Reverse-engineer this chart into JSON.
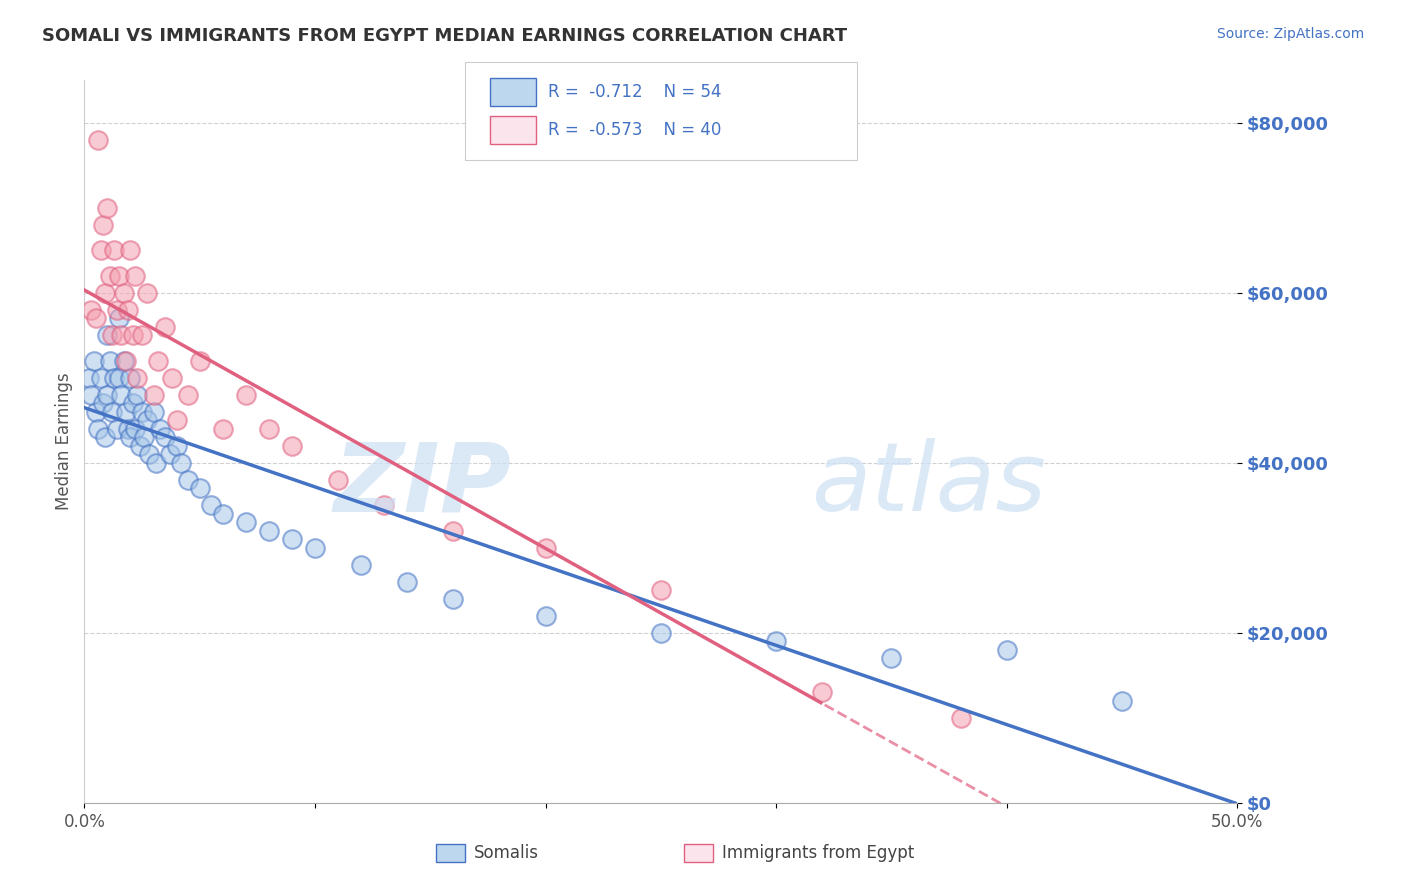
{
  "title": "SOMALI VS IMMIGRANTS FROM EGYPT MEDIAN EARNINGS CORRELATION CHART",
  "source": "Source: ZipAtlas.com",
  "ylabel": "Median Earnings",
  "legend_label1": "Somalis",
  "legend_label2": "Immigrants from Egypt",
  "color_blue": "#a8c8e8",
  "color_pink": "#f4a0b0",
  "color_blue_line": "#4472c4",
  "color_pink_line": "#e06080",
  "color_blue_fill": "#bdd7ee",
  "color_pink_fill": "#fce4ec",
  "ytick_labels": [
    "$0",
    "$20,000",
    "$40,000",
    "$60,000",
    "$80,000"
  ],
  "ytick_values": [
    0,
    20000,
    40000,
    60000,
    80000
  ],
  "xlim": [
    0.0,
    0.5
  ],
  "ylim": [
    0,
    85000
  ],
  "somali_x": [
    0.002,
    0.003,
    0.004,
    0.005,
    0.006,
    0.007,
    0.008,
    0.009,
    0.01,
    0.01,
    0.011,
    0.012,
    0.013,
    0.014,
    0.015,
    0.015,
    0.016,
    0.017,
    0.018,
    0.019,
    0.02,
    0.02,
    0.021,
    0.022,
    0.023,
    0.024,
    0.025,
    0.026,
    0.027,
    0.028,
    0.03,
    0.031,
    0.033,
    0.035,
    0.037,
    0.04,
    0.042,
    0.045,
    0.05,
    0.055,
    0.06,
    0.07,
    0.08,
    0.09,
    0.1,
    0.12,
    0.14,
    0.16,
    0.2,
    0.25,
    0.3,
    0.35,
    0.4,
    0.45
  ],
  "somali_y": [
    50000,
    48000,
    52000,
    46000,
    44000,
    50000,
    47000,
    43000,
    55000,
    48000,
    52000,
    46000,
    50000,
    44000,
    57000,
    50000,
    48000,
    52000,
    46000,
    44000,
    50000,
    43000,
    47000,
    44000,
    48000,
    42000,
    46000,
    43000,
    45000,
    41000,
    46000,
    40000,
    44000,
    43000,
    41000,
    42000,
    40000,
    38000,
    37000,
    35000,
    34000,
    33000,
    32000,
    31000,
    30000,
    28000,
    26000,
    24000,
    22000,
    20000,
    19000,
    17000,
    18000,
    12000
  ],
  "egypt_x": [
    0.003,
    0.005,
    0.006,
    0.007,
    0.008,
    0.009,
    0.01,
    0.011,
    0.012,
    0.013,
    0.014,
    0.015,
    0.016,
    0.017,
    0.018,
    0.019,
    0.02,
    0.021,
    0.022,
    0.023,
    0.025,
    0.027,
    0.03,
    0.032,
    0.035,
    0.038,
    0.04,
    0.045,
    0.05,
    0.06,
    0.07,
    0.08,
    0.09,
    0.11,
    0.13,
    0.16,
    0.2,
    0.25,
    0.32,
    0.38
  ],
  "egypt_y": [
    58000,
    57000,
    78000,
    65000,
    68000,
    60000,
    70000,
    62000,
    55000,
    65000,
    58000,
    62000,
    55000,
    60000,
    52000,
    58000,
    65000,
    55000,
    62000,
    50000,
    55000,
    60000,
    48000,
    52000,
    56000,
    50000,
    45000,
    48000,
    52000,
    44000,
    48000,
    44000,
    42000,
    38000,
    35000,
    32000,
    30000,
    25000,
    13000,
    10000
  ]
}
